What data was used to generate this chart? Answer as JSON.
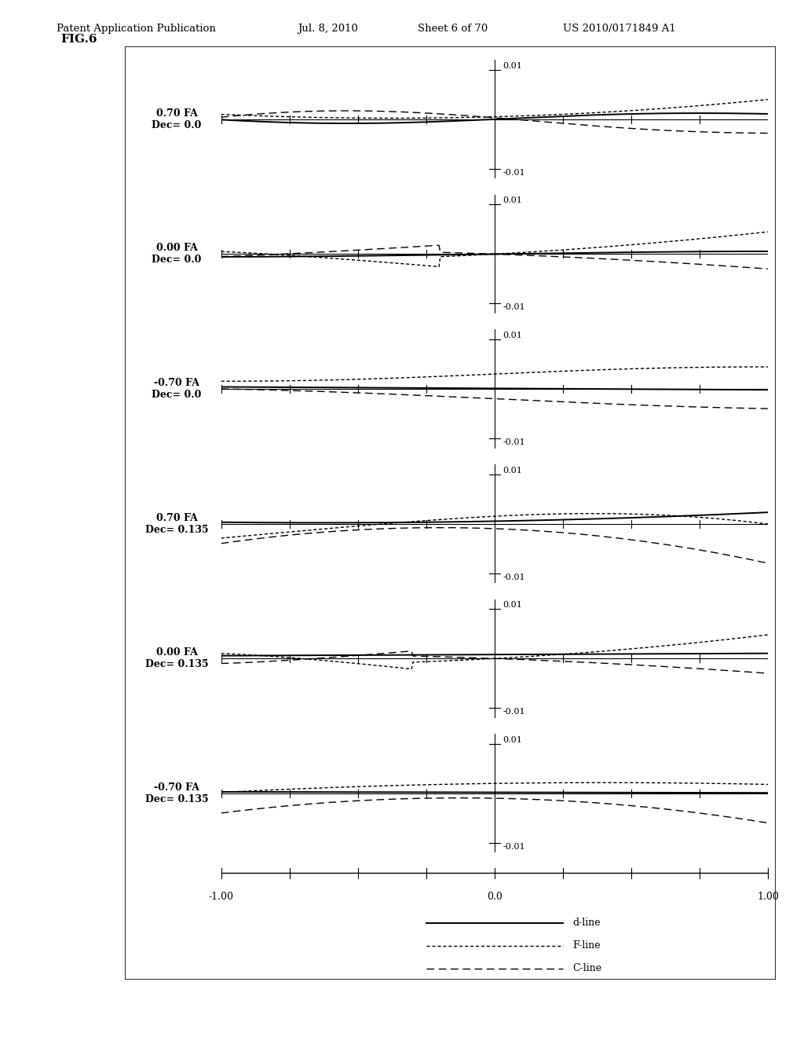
{
  "figure_label": "FIG.6",
  "patent_header_left": "Patent Application Publication",
  "patent_header_mid": "Jul. 8, 2010",
  "patent_header_sheet": "Sheet 6 of 70",
  "patent_header_right": "US 2010/0171849 A1",
  "panels": [
    {
      "label": "0.70 FA\nDec= 0.0"
    },
    {
      "label": "0.00 FA\nDec= 0.0"
    },
    {
      "label": "-0.70 FA\nDec= 0.0"
    },
    {
      "label": "0.70 FA\nDec= 0.135"
    },
    {
      "label": "0.00 FA\nDec= 0.135"
    },
    {
      "label": "-0.70 FA\nDec= 0.135"
    }
  ],
  "ylim": [
    -0.012,
    0.012
  ],
  "xlim": [
    -1.0,
    1.0
  ],
  "xticks": [
    -1.0,
    -0.75,
    -0.5,
    -0.25,
    0.0,
    0.25,
    0.5,
    0.75,
    1.0
  ],
  "legend_labels": [
    "d-line",
    "F-line",
    "C-line"
  ]
}
